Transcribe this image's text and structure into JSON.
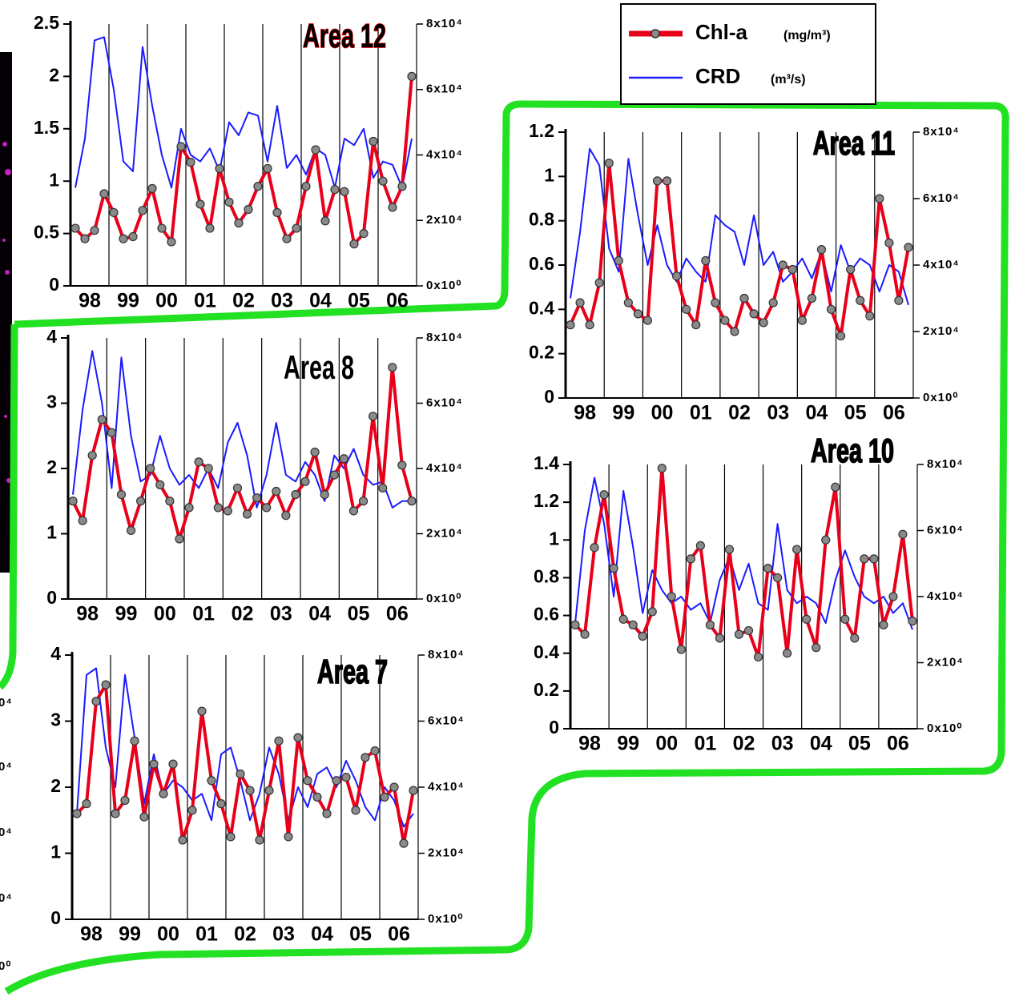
{
  "legend": [
    {
      "name": "Chl-a",
      "unit": "(mg/m³)",
      "color": "#e8001a",
      "marker_color": "#8a8a8a"
    },
    {
      "name": "CRD",
      "unit": "(m³/s)",
      "color": "#1a1aff"
    }
  ],
  "cropped_labels": [
    "0⁴",
    "0⁴",
    "0⁴",
    "0⁴",
    "0⁰"
  ],
  "chart_data": [
    {
      "type": "line",
      "title": "Area 12",
      "title_color": "#ffee00",
      "title_stroke": "#e00000",
      "categories": [
        null,
        "98",
        null,
        null,
        null,
        "99",
        null,
        null,
        null,
        "00",
        null,
        null,
        null,
        "01",
        null,
        null,
        null,
        "02",
        null,
        null,
        null,
        "03",
        null,
        null,
        null,
        "04",
        null,
        null,
        null,
        "05",
        null,
        null,
        null,
        "06",
        null,
        null
      ],
      "ylim": [
        0,
        2.5
      ],
      "yticks": [
        0,
        0.5,
        1,
        1.5,
        2,
        2.5
      ],
      "y2lim": [
        0,
        80000
      ],
      "y2ticks": [
        {
          "value": 0,
          "label": "0x10⁰"
        },
        {
          "value": 20000,
          "label": "2x10⁴"
        },
        {
          "value": 40000,
          "label": "4x10⁴"
        },
        {
          "value": 60000,
          "label": "6x10⁴"
        },
        {
          "value": 80000,
          "label": "8x10⁴"
        }
      ],
      "series": [
        {
          "values": [
            0.55,
            0.45,
            0.53,
            0.88,
            0.7,
            0.45,
            0.47,
            0.72,
            0.93,
            0.55,
            0.42,
            1.33,
            1.18,
            0.78,
            0.55,
            1.12,
            0.8,
            0.6,
            0.73,
            0.95,
            1.12,
            0.7,
            0.45,
            0.55,
            0.95,
            1.3,
            0.62,
            0.92,
            0.9,
            0.4,
            0.5,
            1.38,
            1.0,
            0.75,
            0.95,
            2.0
          ]
        },
        {
          "axis": "y2",
          "values": [
            30000,
            45000,
            75000,
            76000,
            60000,
            38000,
            35000,
            73000,
            55000,
            40000,
            30000,
            48000,
            40000,
            38000,
            42000,
            35000,
            50000,
            46000,
            53000,
            52000,
            38000,
            55000,
            36000,
            40000,
            34000,
            42000,
            40000,
            30000,
            45000,
            43000,
            48000,
            33000,
            38000,
            37000,
            30000,
            45000
          ]
        }
      ]
    },
    {
      "type": "line",
      "title": "Area 11",
      "title_color": "#ffee00",
      "title_stroke": "#000000",
      "categories": [
        null,
        "98",
        null,
        null,
        null,
        "99",
        null,
        null,
        null,
        "00",
        null,
        null,
        null,
        "01",
        null,
        null,
        null,
        "02",
        null,
        null,
        null,
        "03",
        null,
        null,
        null,
        "04",
        null,
        null,
        null,
        "05",
        null,
        null,
        null,
        "06",
        null,
        null
      ],
      "ylim": [
        0,
        1.2
      ],
      "yticks": [
        0,
        0.2,
        0.4,
        0.6,
        0.8,
        1,
        1.2
      ],
      "y2lim": [
        0,
        80000
      ],
      "y2ticks": [
        {
          "value": 0,
          "label": "0x10⁰"
        },
        {
          "value": 20000,
          "label": "2x10⁴"
        },
        {
          "value": 40000,
          "label": "4x10⁴"
        },
        {
          "value": 60000,
          "label": "6x10⁴"
        },
        {
          "value": 80000,
          "label": "8x10⁴"
        }
      ],
      "series": [
        {
          "values": [
            0.33,
            0.43,
            0.33,
            0.52,
            1.06,
            0.62,
            0.43,
            0.38,
            0.35,
            0.98,
            0.98,
            0.55,
            0.4,
            0.33,
            0.62,
            0.43,
            0.35,
            0.3,
            0.45,
            0.38,
            0.34,
            0.43,
            0.6,
            0.58,
            0.35,
            0.45,
            0.67,
            0.4,
            0.28,
            0.58,
            0.44,
            0.37,
            0.9,
            0.7,
            0.44,
            0.68
          ]
        },
        {
          "axis": "y2",
          "values": [
            30000,
            50000,
            75000,
            70000,
            45000,
            38000,
            72000,
            55000,
            40000,
            52000,
            40000,
            35000,
            42000,
            38000,
            35000,
            55000,
            52000,
            50000,
            40000,
            55000,
            40000,
            44000,
            35000,
            38000,
            42000,
            36000,
            44000,
            32000,
            46000,
            38000,
            42000,
            40000,
            32000,
            40000,
            38000,
            28000
          ]
        }
      ]
    },
    {
      "type": "line",
      "title": "Area 10",
      "title_color": "#ffee00",
      "title_stroke": "#000000",
      "categories": [
        null,
        "98",
        null,
        null,
        null,
        "99",
        null,
        null,
        null,
        "00",
        null,
        null,
        null,
        "01",
        null,
        null,
        null,
        "02",
        null,
        null,
        null,
        "03",
        null,
        null,
        null,
        "04",
        null,
        null,
        null,
        "05",
        null,
        null,
        null,
        "06",
        null,
        null
      ],
      "ylim": [
        0,
        1.4
      ],
      "yticks": [
        0,
        0.2,
        0.4,
        0.6,
        0.8,
        1,
        1.2,
        1.4
      ],
      "y2lim": [
        0,
        80000
      ],
      "y2ticks": [
        {
          "value": 0,
          "label": "0x10⁰"
        },
        {
          "value": 20000,
          "label": "2x10⁴"
        },
        {
          "value": 40000,
          "label": "4x10⁴"
        },
        {
          "value": 60000,
          "label": "6x10⁴"
        },
        {
          "value": 80000,
          "label": "8x10⁴"
        }
      ],
      "series": [
        {
          "values": [
            0.55,
            0.5,
            0.96,
            1.24,
            0.85,
            0.58,
            0.55,
            0.49,
            0.62,
            1.38,
            0.7,
            0.42,
            0.9,
            0.97,
            0.55,
            0.48,
            0.95,
            0.5,
            0.52,
            0.38,
            0.85,
            0.8,
            0.4,
            0.95,
            0.58,
            0.43,
            1.0,
            1.28,
            0.58,
            0.48,
            0.9,
            0.9,
            0.55,
            0.7,
            1.03,
            0.57
          ]
        },
        {
          "axis": "y2",
          "values": [
            32000,
            60000,
            76000,
            62000,
            40000,
            72000,
            55000,
            35000,
            48000,
            42000,
            38000,
            40000,
            36000,
            38000,
            32000,
            45000,
            52000,
            42000,
            50000,
            38000,
            36000,
            62000,
            42000,
            38000,
            40000,
            38000,
            32000,
            45000,
            54000,
            46000,
            40000,
            38000,
            40000,
            35000,
            38000,
            30000
          ]
        }
      ]
    },
    {
      "type": "line",
      "title": "Area 8",
      "title_color": "#102a60",
      "title_stroke": "none",
      "categories": [
        null,
        "98",
        null,
        null,
        null,
        "99",
        null,
        null,
        null,
        "00",
        null,
        null,
        null,
        "01",
        null,
        null,
        null,
        "02",
        null,
        null,
        null,
        "03",
        null,
        null,
        null,
        "04",
        null,
        null,
        null,
        "05",
        null,
        null,
        null,
        "06",
        null,
        null
      ],
      "ylim": [
        0,
        4
      ],
      "yticks": [
        0,
        1,
        2,
        3,
        4
      ],
      "y2lim": [
        0,
        80000
      ],
      "y2ticks": [
        {
          "value": 0,
          "label": "0x10⁰"
        },
        {
          "value": 20000,
          "label": "2x10⁴"
        },
        {
          "value": 40000,
          "label": "4x10⁴"
        },
        {
          "value": 60000,
          "label": "6x10⁴"
        },
        {
          "value": 80000,
          "label": "8x10⁴"
        }
      ],
      "series": [
        {
          "values": [
            1.5,
            1.2,
            2.2,
            2.75,
            2.55,
            1.6,
            1.05,
            1.5,
            2.0,
            1.75,
            1.5,
            0.92,
            1.4,
            2.1,
            2.0,
            1.4,
            1.35,
            1.7,
            1.3,
            1.55,
            1.4,
            1.65,
            1.28,
            1.6,
            1.8,
            2.25,
            1.6,
            1.9,
            2.15,
            1.35,
            1.5,
            2.8,
            1.7,
            3.55,
            2.05,
            1.5
          ]
        },
        {
          "axis": "y2",
          "values": [
            32000,
            58000,
            76000,
            60000,
            34000,
            74000,
            50000,
            36000,
            38000,
            50000,
            40000,
            35000,
            38000,
            34000,
            40000,
            34000,
            48000,
            54000,
            44000,
            28000,
            38000,
            54000,
            38000,
            36000,
            42000,
            38000,
            30000,
            44000,
            40000,
            46000,
            38000,
            35000,
            36000,
            28000,
            30000,
            30000
          ]
        }
      ]
    },
    {
      "type": "line",
      "title": "Area 7",
      "title_color": "#ffee00",
      "title_stroke": "#000000",
      "categories": [
        null,
        "98",
        null,
        null,
        null,
        "99",
        null,
        null,
        null,
        "00",
        null,
        null,
        null,
        "01",
        null,
        null,
        null,
        "02",
        null,
        null,
        null,
        "03",
        null,
        null,
        null,
        "04",
        null,
        null,
        null,
        "05",
        null,
        null,
        null,
        "06",
        null,
        null
      ],
      "ylim": [
        0,
        4
      ],
      "yticks": [
        0,
        1,
        2,
        3,
        4
      ],
      "y2lim": [
        0,
        80000
      ],
      "y2ticks": [
        {
          "value": 0,
          "label": "0x10⁰"
        },
        {
          "value": 20000,
          "label": "2x10⁴"
        },
        {
          "value": 40000,
          "label": "4x10⁴"
        },
        {
          "value": 60000,
          "label": "6x10⁴"
        },
        {
          "value": 80000,
          "label": "8x10⁴"
        }
      ],
      "series": [
        {
          "values": [
            1.6,
            1.75,
            3.3,
            3.55,
            1.6,
            1.8,
            2.7,
            1.55,
            2.35,
            1.9,
            2.35,
            1.2,
            1.65,
            3.15,
            2.1,
            1.75,
            1.25,
            2.2,
            1.95,
            1.2,
            1.95,
            2.7,
            1.25,
            2.75,
            2.1,
            1.85,
            1.6,
            2.1,
            2.15,
            1.65,
            2.45,
            2.55,
            1.85,
            2.0,
            1.15,
            1.95
          ]
        },
        {
          "axis": "y2",
          "values": [
            32000,
            74000,
            76000,
            52000,
            40000,
            74000,
            55000,
            35000,
            50000,
            38000,
            42000,
            40000,
            36000,
            38000,
            30000,
            50000,
            52000,
            42000,
            30000,
            38000,
            52000,
            44000,
            30000,
            40000,
            34000,
            44000,
            46000,
            40000,
            48000,
            42000,
            34000,
            30000,
            40000,
            36000,
            28000,
            32000
          ]
        }
      ]
    }
  ]
}
